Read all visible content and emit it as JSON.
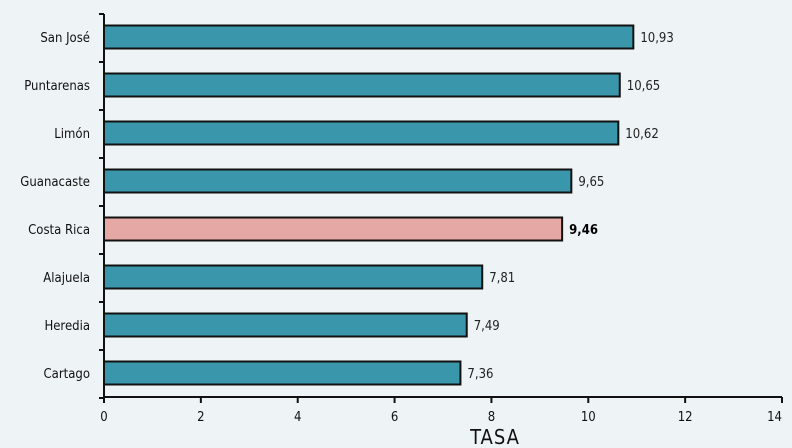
{
  "chart_data": {
    "type": "bar",
    "orientation": "horizontal",
    "categories": [
      "San José",
      "Puntarenas",
      "Limón",
      "Guanacaste",
      "Costa Rica",
      "Alajuela",
      "Heredia",
      "Cartago"
    ],
    "values": [
      10.93,
      10.65,
      10.62,
      9.65,
      9.46,
      7.81,
      7.49,
      7.36
    ],
    "value_labels": [
      "10,93",
      "10,65",
      "10,62",
      "9,65",
      "9,46",
      "7,81",
      "7,49",
      "7,36"
    ],
    "highlight_category": "Costa Rica",
    "xlabel": "TASA",
    "xlim": [
      0,
      14
    ],
    "xticks": [
      "0",
      "2",
      "4",
      "6",
      "8",
      "10",
      "12",
      "14"
    ],
    "grid": false,
    "colors": {
      "bar": "#3a96aa",
      "highlight": "#e5a8a5",
      "bar_outline": "#111111",
      "background": "#eef4f5"
    }
  }
}
